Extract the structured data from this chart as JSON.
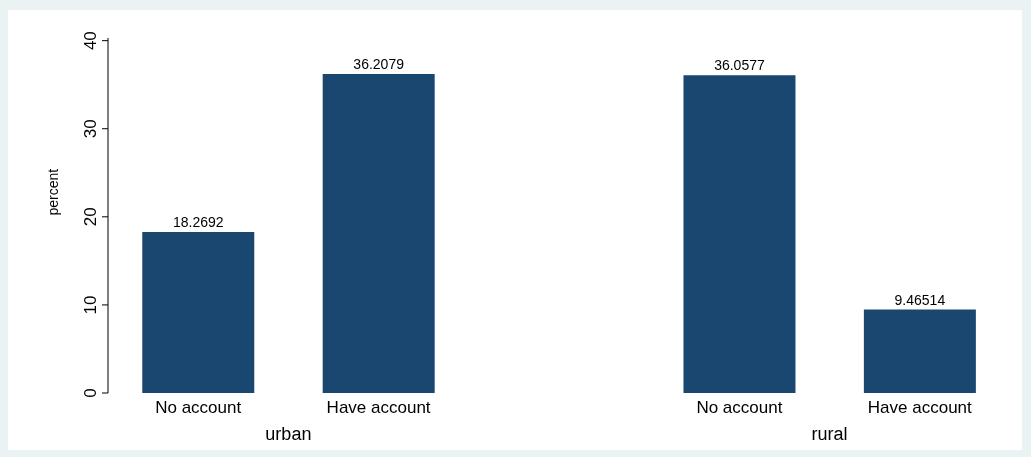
{
  "chart_data": {
    "type": "bar",
    "categories": [
      "No account",
      "Have account",
      null,
      "No account",
      "Have account"
    ],
    "values": [
      18.2692,
      36.2079,
      null,
      36.0577,
      9.46514
    ],
    "color": "#1a476f",
    "ylabel": "percent",
    "ylim": [
      0,
      40.3
    ],
    "yticks": [
      0,
      10,
      20,
      30,
      40
    ],
    "data_labels": true,
    "annotations": [
      "urban",
      "rural"
    ]
  }
}
